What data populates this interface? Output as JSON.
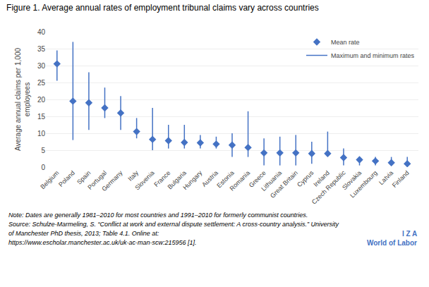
{
  "chart_data": {
    "type": "dot",
    "title": "Figure 1. Average annual rates of employment tribunal claims vary across countries",
    "ylabel": "Average annual claims per 1,000\nemployees",
    "categories": [
      "Belgium",
      "Poland",
      "Spain",
      "Portugal",
      "Germany",
      "Italy",
      "Slovenia",
      "France",
      "Bulgaria",
      "Hungary",
      "Austria",
      "Estonia",
      "Romania",
      "Greece",
      "Lithuania",
      "Great Britain",
      "Cyprus",
      "Ireland",
      "Czech Republic",
      "Slovakia",
      "Luxembourg",
      "Latvia",
      "Finland"
    ],
    "series": [
      {
        "name": "Mean rate",
        "type": "scatter",
        "marker": "diamond",
        "color": "#4472C4",
        "values": [
          30.5,
          19.5,
          19.0,
          17.5,
          16.0,
          10.5,
          8.2,
          7.8,
          7.3,
          7.2,
          6.8,
          6.5,
          5.8,
          4.2,
          4.2,
          4.2,
          4.0,
          4.0,
          2.8,
          2.2,
          1.8,
          1.3,
          1.0
        ]
      },
      {
        "name": "Maximum and minimum rates",
        "type": "range",
        "line_style": "solid",
        "color": "#4472C4",
        "min": [
          25.5,
          8.0,
          11.0,
          14.5,
          11.0,
          8.5,
          5.0,
          5.5,
          5.5,
          5.5,
          5.5,
          3.0,
          3.0,
          0.5,
          0.5,
          0.5,
          1.0,
          3.5,
          0.5,
          0.5,
          0.5,
          0.5,
          0.5
        ],
        "max": [
          34.5,
          37.0,
          28.0,
          23.5,
          21.0,
          14.5,
          17.5,
          12.5,
          12.5,
          9.5,
          9.0,
          10.0,
          16.5,
          8.5,
          9.0,
          9.5,
          7.5,
          10.5,
          5.5,
          3.0,
          3.0,
          3.0,
          3.0
        ]
      }
    ],
    "color": "#4472C4",
    "ylim": [
      0,
      40
    ],
    "yticks": [
      0,
      5,
      10,
      15,
      20,
      25,
      30,
      35,
      40
    ],
    "grid": true,
    "legend": "upper right",
    "notes": [
      "Note: Dates are generally 1981–2010 for most countries and 1991–2010 for formerly communist countries.",
      "Source: Schulze-Marmeling, S. “Conflict at work and external dispute settlement: A cross-country analysis.” University",
      "of Manchester PhD thesis, 2013; Table 4.1. Online at:",
      "https://www.escholar.manchester.ac.uk/uk-ac-man-scw:215956 [1]."
    ],
    "annotations": [
      "I Z A",
      "World of Labor"
    ]
  }
}
